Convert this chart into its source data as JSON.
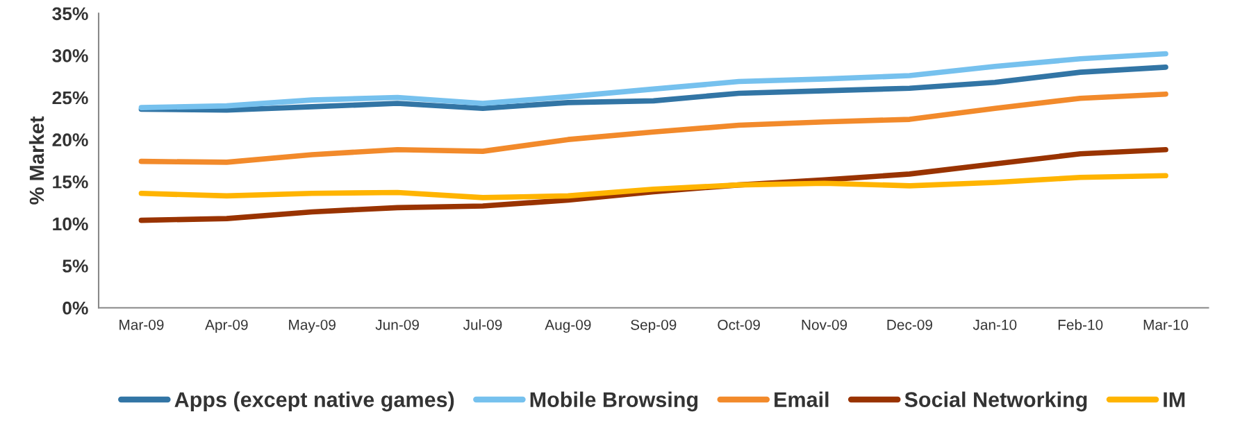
{
  "chart_data": {
    "type": "line",
    "ylabel": "% Market",
    "categories": [
      "Mar-09",
      "Apr-09",
      "May-09",
      "Jun-09",
      "Jul-09",
      "Aug-09",
      "Sep-09",
      "Oct-09",
      "Nov-09",
      "Dec-09",
      "Jan-10",
      "Feb-10",
      "Mar-10"
    ],
    "series": [
      {
        "name": "Apps (except native games)",
        "color": "#3275a5",
        "values": [
          23.6,
          23.5,
          23.9,
          24.3,
          23.7,
          24.4,
          24.6,
          25.5,
          25.8,
          26.1,
          26.8,
          28.0,
          28.6
        ]
      },
      {
        "name": "Mobile Browsing",
        "color": "#76c1ee",
        "values": [
          23.8,
          24.0,
          24.7,
          25.0,
          24.3,
          25.1,
          26.0,
          26.9,
          27.2,
          27.6,
          28.7,
          29.6,
          30.2
        ]
      },
      {
        "name": "Email",
        "color": "#f28a2b",
        "values": [
          17.4,
          17.3,
          18.2,
          18.8,
          18.6,
          20.0,
          20.9,
          21.7,
          22.1,
          22.4,
          23.7,
          24.9,
          25.4
        ]
      },
      {
        "name": "Social Networking",
        "color": "#993300",
        "values": [
          10.4,
          10.6,
          11.4,
          11.9,
          12.1,
          12.8,
          13.8,
          14.6,
          15.2,
          15.9,
          17.1,
          18.3,
          18.8
        ]
      },
      {
        "name": "IM",
        "color": "#ffb400",
        "values": [
          13.6,
          13.3,
          13.6,
          13.7,
          13.1,
          13.3,
          14.1,
          14.6,
          14.8,
          14.5,
          14.9,
          15.5,
          15.7
        ]
      }
    ],
    "ylim": [
      0,
      35
    ],
    "yticks": [
      {
        "value": 0,
        "label": "0%"
      },
      {
        "value": 5,
        "label": "5%"
      },
      {
        "value": 10,
        "label": "10%"
      },
      {
        "value": 15,
        "label": "15%"
      },
      {
        "value": 20,
        "label": "20%"
      },
      {
        "value": 25,
        "label": "25%"
      },
      {
        "value": 30,
        "label": "30%"
      },
      {
        "value": 35,
        "label": "35%"
      }
    ],
    "grid": false,
    "legend": "bottom",
    "marker": "none",
    "line_style": "solid"
  }
}
